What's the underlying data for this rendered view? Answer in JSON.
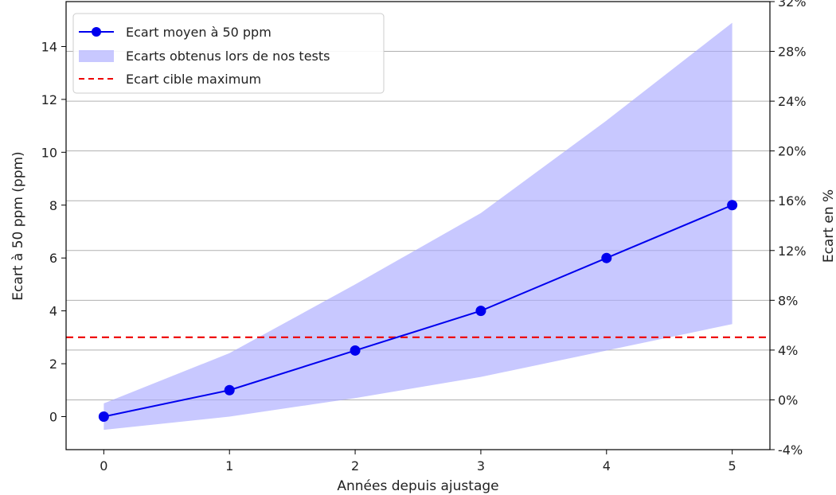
{
  "chart_data": {
    "type": "line",
    "title": "",
    "xlabel": "Années depuis ajustage",
    "ylabel": "Ecart à 50 ppm (ppm)",
    "y2label": "Ecart en %",
    "x": [
      0,
      1,
      2,
      3,
      4,
      5
    ],
    "xlim": [
      -0.3,
      5.3
    ],
    "ylim": [
      -1.25,
      15.7
    ],
    "x_ticks": [
      "0",
      "1",
      "2",
      "3",
      "4",
      "5"
    ],
    "y_ticks": [
      "0",
      "2",
      "4",
      "6",
      "8",
      "10",
      "12",
      "14"
    ],
    "y2lim": [
      -4,
      32
    ],
    "y2_ticks": [
      "-4%",
      "0%",
      "4%",
      "8%",
      "12%",
      "16%",
      "20%",
      "24%",
      "28%",
      "32%"
    ],
    "grid": "horizontal (secondary axis)",
    "legend_position": "top-left",
    "series": [
      {
        "name": "Ecart moyen à 50 ppm",
        "kind": "line-marker",
        "color": "#0000ee",
        "values": [
          0,
          1,
          2.5,
          4,
          6,
          8
        ]
      },
      {
        "name": "Ecarts obtenus lors de nos tests",
        "kind": "band",
        "color": "#aaaaff",
        "lower": [
          -0.5,
          0,
          0.7,
          1.5,
          2.5,
          3.5
        ],
        "upper": [
          0.5,
          2.4,
          5,
          7.7,
          11.2,
          14.9
        ]
      },
      {
        "name": "Ecart cible maximum",
        "kind": "hline",
        "color": "#ee0000",
        "value": 3
      }
    ]
  }
}
